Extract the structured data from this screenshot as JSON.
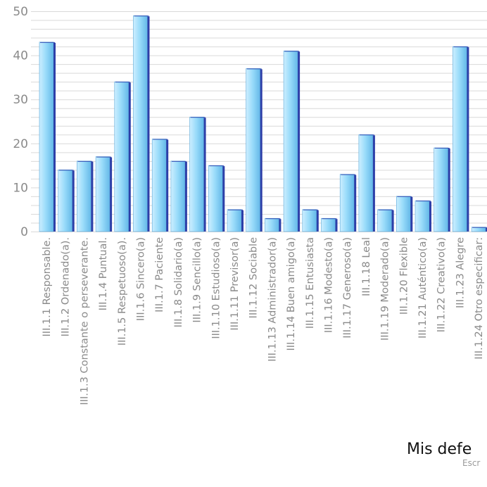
{
  "chart_data": {
    "type": "bar",
    "title": "Mis defe",
    "subtitle": "Escr",
    "ylim": [
      0,
      50
    ],
    "yticks": [
      0,
      10,
      20,
      30,
      40,
      50
    ],
    "grid": true,
    "categories": [
      "III.1.1  Responsable.",
      "III.1.2  Ordenado(a).",
      "III.1.3  Constante o perseverante.",
      "III.1.4  Puntual.",
      "III.1.5  Respetuoso(a).",
      "III.1.6  Sincero(a)",
      "III.1.7  Paciente",
      "III.1.8  Solidario(a)",
      "III.1.9  Sencillo(a)",
      "III.1.10 Estudioso(a)",
      "III.1.11 Previsor(a)",
      "III.1.12 Sociable",
      "III.1.13 Administrador(a)",
      "III.1.14 Buen amigo(a)",
      "III.1.15  Entusiasta",
      "III.1.16  Modesto(a)",
      "III.1.17  Generoso(a)",
      "III.1.18  Leal",
      "III.1.19 Moderado(a)",
      "III.1.20 Flexible",
      "III.1.21 Auténtico(a)",
      "III.1.22 Creativo(a)",
      "III.1.23 Alegre",
      "III.1.24 Otro especificar:"
    ],
    "values": [
      43,
      14,
      16,
      17,
      34,
      49,
      21,
      16,
      26,
      15,
      5,
      37,
      3,
      41,
      5,
      3,
      13,
      22,
      5,
      8,
      7,
      19,
      42,
      1
    ],
    "colors": {
      "bar_light": "#cdeeff",
      "bar_mid": "#8fd6f8",
      "bar_dark": "#64b8e8",
      "bar_side": "#2d3fa8",
      "grid": "#d9d9d9",
      "tick_text": "#8a8a8a"
    }
  }
}
